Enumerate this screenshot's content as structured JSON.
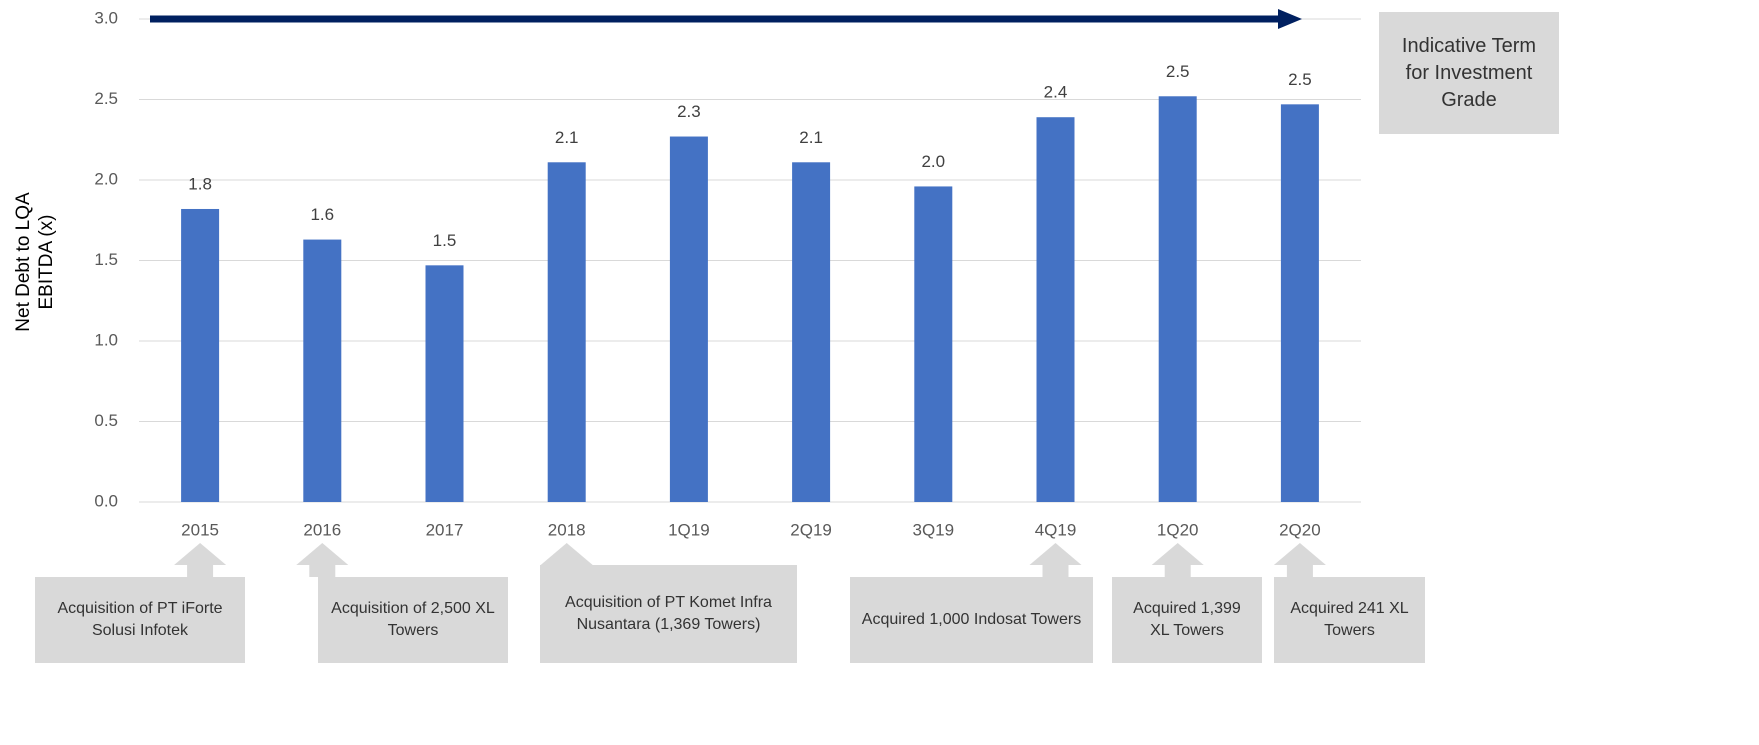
{
  "chart_data": {
    "type": "bar",
    "ylabel": [
      "Net Debt to LQA",
      "EBITDA (x)"
    ],
    "categories": [
      "2015",
      "2016",
      "2017",
      "2018",
      "1Q19",
      "2Q19",
      "3Q19",
      "4Q19",
      "1Q20",
      "2Q20"
    ],
    "values": [
      1.82,
      1.63,
      1.47,
      2.11,
      2.27,
      2.11,
      1.96,
      2.39,
      2.52,
      2.47
    ],
    "value_labels": [
      "1.8",
      "1.6",
      "1.5",
      "2.1",
      "2.3",
      "2.1",
      "2.0",
      "2.4",
      "2.5",
      "2.5"
    ],
    "color": "#4472c4",
    "ylim": [
      0,
      3
    ],
    "yticks": [
      {
        "value": 0,
        "label": "0.0"
      },
      {
        "value": 0.5,
        "label": "0.5"
      },
      {
        "value": 1,
        "label": "1.0"
      },
      {
        "value": 1.5,
        "label": "1.5"
      },
      {
        "value": 2,
        "label": "2.0"
      },
      {
        "value": 2.5,
        "label": "2.5"
      },
      {
        "value": 3,
        "label": "3.0"
      }
    ],
    "grid": true,
    "target_value": 3,
    "target_label": "Indicative Term for Investment Grade",
    "annotations": [
      "Acquisition of PT iForte Solusi Infotek",
      "Acquisition of 2,500 XL Towers",
      "Acquisition of PT Komet Infra Nusantara (1,369 Towers)",
      "Acquired 1,000 Indosat Towers",
      "Acquired 1,399 XL Towers",
      "Acquired 241 XL Towers"
    ]
  }
}
